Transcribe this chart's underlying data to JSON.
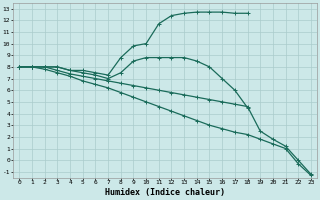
{
  "title": "",
  "xlabel": "Humidex (Indice chaleur)",
  "bg_color": "#cce8e8",
  "grid_color": "#aacccc",
  "line_color": "#1a6b5a",
  "xlim_min": -0.5,
  "xlim_max": 23.5,
  "ylim_min": -1.5,
  "ylim_max": 13.5,
  "xticks": [
    0,
    1,
    2,
    3,
    4,
    5,
    6,
    7,
    8,
    9,
    10,
    11,
    12,
    13,
    14,
    15,
    16,
    17,
    18,
    19,
    20,
    21,
    22,
    23
  ],
  "yticks": [
    -1,
    0,
    1,
    2,
    3,
    4,
    5,
    6,
    7,
    8,
    9,
    10,
    11,
    12,
    13
  ],
  "series": [
    {
      "x": [
        0,
        1,
        2,
        3,
        4,
        5,
        6,
        7,
        8,
        9,
        10,
        11,
        12,
        13,
        14,
        15,
        16,
        17,
        18
      ],
      "y": [
        8,
        8,
        8,
        8,
        7.7,
        7.7,
        7.5,
        7.3,
        8.8,
        9.8,
        10,
        11.7,
        12.4,
        12.6,
        12.7,
        12.7,
        12.7,
        12.6,
        12.6
      ]
    },
    {
      "x": [
        0,
        1,
        2,
        3,
        4,
        5,
        6,
        7,
        8,
        9,
        10,
        11,
        12,
        13,
        14,
        15,
        16,
        17,
        18
      ],
      "y": [
        8,
        8,
        8,
        8,
        7.7,
        7.5,
        7.3,
        7.0,
        7.5,
        8.5,
        8.8,
        8.8,
        8.8,
        8.8,
        8.5,
        8.0,
        7.0,
        6.0,
        4.5
      ]
    },
    {
      "x": [
        0,
        1,
        2,
        3,
        4,
        5,
        6,
        7,
        8,
        9,
        10,
        11,
        12,
        13,
        14,
        15,
        16,
        17,
        18,
        19,
        20,
        21,
        22,
        23
      ],
      "y": [
        8,
        8,
        8,
        7.7,
        7.4,
        7.2,
        7.0,
        6.8,
        6.6,
        6.4,
        6.2,
        6.0,
        5.8,
        5.6,
        5.4,
        5.2,
        5.0,
        4.8,
        4.6,
        2.5,
        1.8,
        1.2,
        0.0,
        -1.2
      ]
    },
    {
      "x": [
        0,
        1,
        2,
        3,
        4,
        5,
        6,
        7,
        8,
        9,
        10,
        11,
        12,
        13,
        14,
        15,
        16,
        17,
        18,
        19,
        20,
        21,
        22,
        23
      ],
      "y": [
        8,
        8,
        7.8,
        7.5,
        7.2,
        6.8,
        6.5,
        6.2,
        5.8,
        5.4,
        5.0,
        4.6,
        4.2,
        3.8,
        3.4,
        3.0,
        2.7,
        2.4,
        2.2,
        1.8,
        1.4,
        1.0,
        -0.3,
        -1.3
      ]
    }
  ]
}
